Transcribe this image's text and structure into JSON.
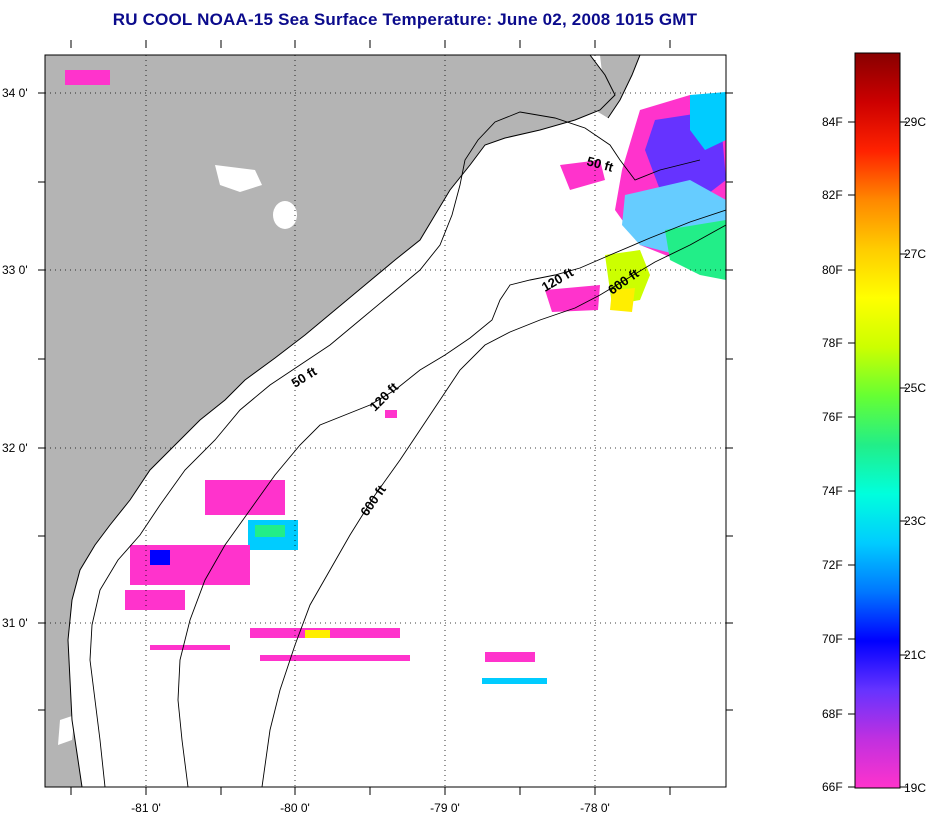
{
  "title": "RU COOL  NOAA-15  Sea Surface Temperature:  June 02, 2008 1015 GMT",
  "map": {
    "latitude_labels": [
      "34 0'",
      "33 0'",
      "32 0'",
      "31 0'"
    ],
    "longitude_labels": [
      "-81 0'",
      "-80 0'",
      "-79 0'",
      "-78 0'"
    ],
    "isobath_labels": [
      {
        "text": "50 ft",
        "id": "isobath-50ft-north"
      },
      {
        "text": "120 ft",
        "id": "isobath-120ft-north"
      },
      {
        "text": "600 ft",
        "id": "isobath-600ft-north"
      },
      {
        "text": "50 ft",
        "id": "isobath-50ft-south"
      },
      {
        "text": "120 ft",
        "id": "isobath-120ft-south"
      },
      {
        "text": "600 ft",
        "id": "isobath-600ft-south"
      }
    ],
    "colors": {
      "land": "#b4b4b4",
      "water": "#ffffff",
      "grid": "#000000"
    }
  },
  "colorbar": {
    "fahrenheit_labels": [
      "84F",
      "82F",
      "80F",
      "78F",
      "76F",
      "74F",
      "72F",
      "70F",
      "68F",
      "66F"
    ],
    "celsius_labels": [
      "29C",
      "27C",
      "25C",
      "23C",
      "21C",
      "19C"
    ],
    "colors": [
      "#ff33cc",
      "#c030e0",
      "#6633ff",
      "#0000ff",
      "#0077ff",
      "#00ccff",
      "#00ffdd",
      "#22ee88",
      "#66ff33",
      "#ccff00",
      "#ffff00",
      "#ffcc00",
      "#ff8800",
      "#ff2200",
      "#cc0000",
      "#880000"
    ]
  }
}
